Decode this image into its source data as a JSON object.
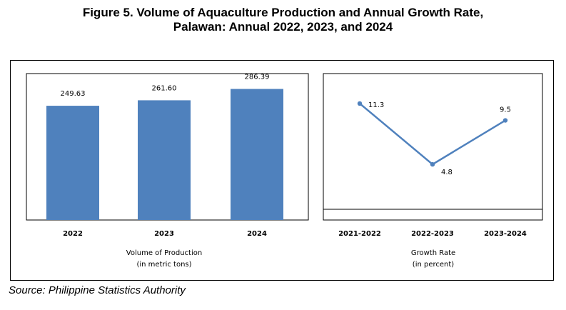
{
  "title": {
    "line1": "Figure 5. Volume of Aquaculture Production and Annual Growth Rate,",
    "line2": "Palawan: Annual 2022, 2023, and 2024"
  },
  "source": "Source: Philippine Statistics Authority",
  "colors": {
    "bar": "#4f81bd",
    "line": "#4f81bd"
  },
  "chart_data": [
    {
      "type": "bar",
      "categories": [
        "2022",
        "2023",
        "2024"
      ],
      "values": [
        249.63,
        261.6,
        286.39
      ],
      "value_labels": [
        "249.63",
        "261.60",
        "286.39"
      ],
      "xlabel": "Volume of Production",
      "xlabel_unit": "(in metric tons)",
      "ylim": [
        0,
        320
      ],
      "grid": false
    },
    {
      "type": "line",
      "categories": [
        "2021-2022",
        "2022-2023",
        "2023-2024"
      ],
      "values": [
        11.3,
        4.8,
        9.5
      ],
      "value_labels": [
        "11.3",
        "4.8",
        "9.5"
      ],
      "xlabel": "Growth Rate",
      "xlabel_unit": "(in percent)",
      "ylim": [
        0,
        14.5
      ],
      "grid": false
    }
  ]
}
